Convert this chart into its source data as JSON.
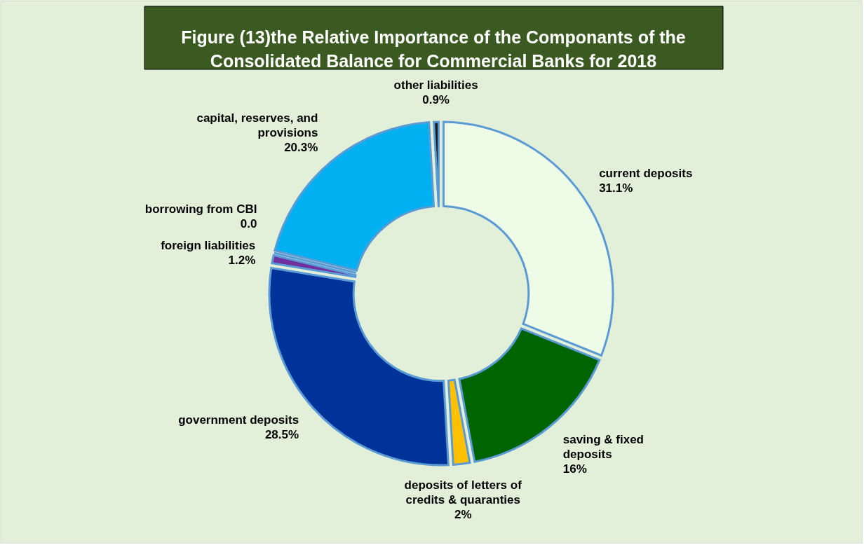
{
  "chart_data": {
    "type": "donut",
    "title": "Figure (13)the Relative Importance of the Componants of the Consolidated Balance for Commercial Banks for 2018",
    "categories": [
      "current deposits",
      "saving & fixed deposits",
      "deposits of letters of credits & quaranties",
      "government deposits",
      "foreign liabilities",
      "borrowing from CBI",
      "capital, reserves, and provisions",
      "other liabilities"
    ],
    "values": [
      31.1,
      16,
      2,
      28.5,
      1.2,
      0.0,
      20.3,
      0.9
    ],
    "value_labels": [
      "31.1%",
      "16%",
      "2%",
      "28.5%",
      "1.2%",
      "0.0",
      "20.3%",
      "0.9%"
    ],
    "colors": [
      "#eefbe6",
      "#006400",
      "#ffc000",
      "#003399",
      "#7030a0",
      "#4472c4",
      "#00b0f0",
      "#1a1a1a"
    ]
  }
}
